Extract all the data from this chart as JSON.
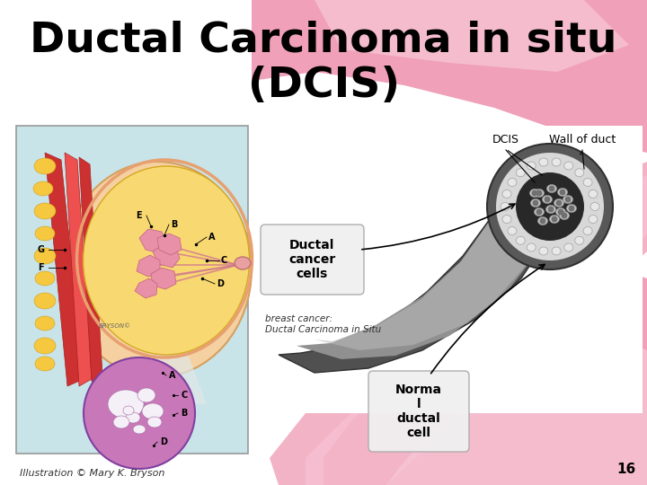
{
  "title_line1": "Ductal Carcinoma in situ",
  "title_line2": "(DCIS)",
  "title_fontsize": 34,
  "title_color": "#000000",
  "background_color": "#ffffff",
  "label_ductal_cancer_cells": "Ductal\ncancer\ncells",
  "label_normal_ductal_cell": "Norma\nl\nductal\ncell",
  "label_dcis": "DCIS",
  "label_wall_of_duct": "Wall of duct",
  "label_breast_cancer": "breast cancer:\nDuctal Carcinoma in Situ",
  "label_illustration": "Illustration © Mary K. Bryson",
  "fig_width": 7.2,
  "fig_height": 5.4,
  "dpi": 100,
  "slide_number": "16",
  "ribbon_pink": "#F0A0B8",
  "ribbon_light": "#F8C8D8",
  "ribbon_dark": "#E08099"
}
